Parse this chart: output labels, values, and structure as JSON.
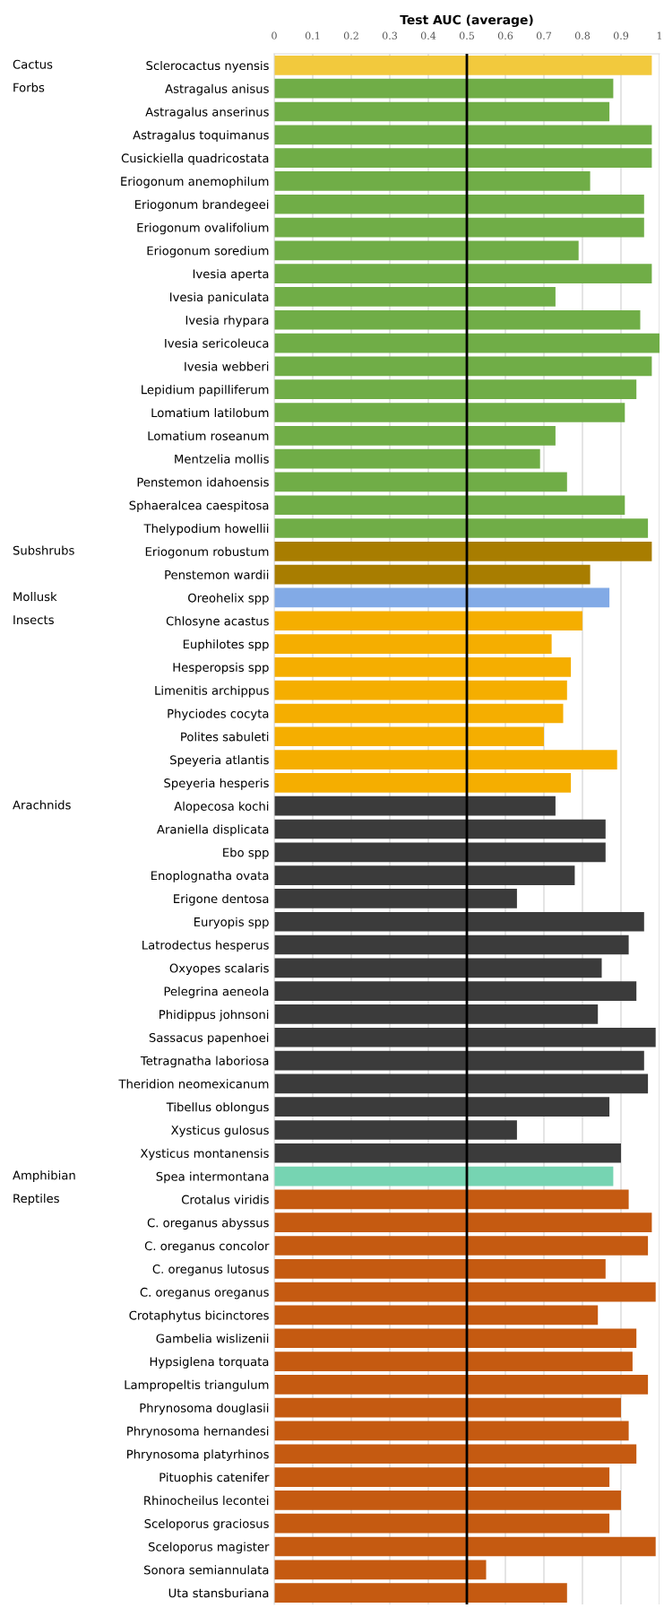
{
  "chart_data": {
    "type": "bar",
    "orientation": "horizontal",
    "xlabel": "Test AUC (average)",
    "categories": [
      "Sclerocactus nyensis",
      "Astragalus anisus",
      "Astragalus anserinus",
      "Astragalus toquimanus",
      "Cusickiella quadricostata",
      "Eriogonum anemophilum",
      "Eriogonum brandegeei",
      "Eriogonum ovalifolium",
      "Eriogonum soredium",
      "Ivesia aperta",
      "Ivesia paniculata",
      "Ivesia rhypara",
      "Ivesia sericoleuca",
      "Ivesia webberi",
      "Lepidium papilliferum",
      "Lomatium latilobum",
      "Lomatium roseanum",
      "Mentzelia mollis",
      "Penstemon idahoensis",
      "Sphaeralcea caespitosa",
      "Thelypodium howellii",
      "Eriogonum robustum",
      "Penstemon wardii",
      "Oreohelix spp",
      "Chlosyne acastus",
      "Euphilotes spp",
      "Hesperopsis spp",
      "Limenitis archippus",
      "Phyciodes cocyta",
      "Polites sabuleti",
      "Speyeria atlantis",
      "Speyeria hesperis",
      "Alopecosa kochi",
      "Araniella displicata",
      "Ebo spp",
      "Enoplognatha ovata",
      "Erigone dentosa",
      "Euryopis spp",
      "Latrodectus hesperus",
      "Oxyopes scalaris",
      "Pelegrina aeneola",
      "Phidippus johnsoni",
      "Sassacus papenhoei",
      "Tetragnatha laboriosa",
      "Theridion neomexicanum",
      "Tibellus oblongus",
      "Xysticus gulosus",
      "Xysticus montanensis",
      "Spea intermontana",
      "Crotalus viridis",
      "C. oreganus abyssus",
      "C. oreganus concolor",
      "C. oreganus lutosus",
      "C. oreganus oreganus",
      "Crotaphytus bicinctores",
      "Gambelia wislizenii",
      "Hypsiglena torquata",
      "Lampropeltis triangulum",
      "Phrynosoma douglasii",
      "Phrynosoma hernandesi",
      "Phrynosoma platyrhinos",
      "Pituophis catenifer",
      "Rhinocheilus lecontei",
      "Sceloporus graciosus",
      "Sceloporus magister",
      "Sonora semiannulata",
      "Uta stansburiana"
    ],
    "values": [
      0.98,
      0.88,
      0.87,
      0.98,
      0.98,
      0.82,
      0.96,
      0.96,
      0.79,
      0.98,
      0.73,
      0.95,
      1.0,
      0.98,
      0.94,
      0.91,
      0.73,
      0.69,
      0.76,
      0.91,
      0.97,
      0.98,
      0.82,
      0.87,
      0.8,
      0.72,
      0.77,
      0.76,
      0.75,
      0.7,
      0.89,
      0.77,
      0.73,
      0.86,
      0.86,
      0.78,
      0.63,
      0.96,
      0.92,
      0.85,
      0.94,
      0.84,
      0.99,
      0.96,
      0.97,
      0.87,
      0.63,
      0.9,
      0.88,
      0.92,
      0.98,
      0.97,
      0.86,
      0.99,
      0.84,
      0.94,
      0.93,
      0.97,
      0.9,
      0.92,
      0.94,
      0.87,
      0.9,
      0.87,
      0.99,
      0.55,
      0.76
    ],
    "colors": [
      "#f2c93d",
      "#70ad47",
      "#70ad47",
      "#70ad47",
      "#70ad47",
      "#70ad47",
      "#70ad47",
      "#70ad47",
      "#70ad47",
      "#70ad47",
      "#70ad47",
      "#70ad47",
      "#70ad47",
      "#70ad47",
      "#70ad47",
      "#70ad47",
      "#70ad47",
      "#70ad47",
      "#70ad47",
      "#70ad47",
      "#70ad47",
      "#a87d00",
      "#a87d00",
      "#82aae6",
      "#f5ae00",
      "#f5ae00",
      "#f5ae00",
      "#f5ae00",
      "#f5ae00",
      "#f5ae00",
      "#f5ae00",
      "#f5ae00",
      "#3b3b3b",
      "#3b3b3b",
      "#3b3b3b",
      "#3b3b3b",
      "#3b3b3b",
      "#3b3b3b",
      "#3b3b3b",
      "#3b3b3b",
      "#3b3b3b",
      "#3b3b3b",
      "#3b3b3b",
      "#3b3b3b",
      "#3b3b3b",
      "#3b3b3b",
      "#3b3b3b",
      "#3b3b3b",
      "#76d4b2",
      "#c55a11",
      "#c55a11",
      "#c55a11",
      "#c55a11",
      "#c55a11",
      "#c55a11",
      "#c55a11",
      "#c55a11",
      "#c55a11",
      "#c55a11",
      "#c55a11",
      "#c55a11",
      "#c55a11",
      "#c55a11",
      "#c55a11",
      "#c55a11",
      "#c55a11",
      "#c55a11"
    ],
    "xlim": [
      0,
      1
    ],
    "xticks": [
      0,
      0.1,
      0.2,
      0.3,
      0.4,
      0.5,
      0.6,
      0.7,
      0.8,
      0.9,
      1
    ],
    "grid": "x",
    "ref_lines": [
      {
        "axis": "x",
        "value": 0.5,
        "color": "#000000"
      }
    ],
    "annotations": [
      "Cactus",
      "Forbs",
      "Subshrubs",
      "Mollusk",
      "Insects",
      "Arachnids",
      "Amphibian",
      "Reptiles"
    ]
  }
}
